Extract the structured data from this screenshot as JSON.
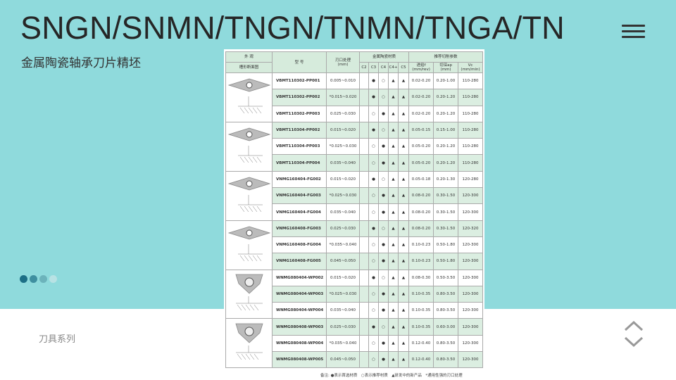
{
  "header": {
    "title": "SNGN/SNMN/TNGN/TNMN/TNGA/TN",
    "subtitle": "金属陶瓷轴承刀片精坯",
    "menu_icon": "hamburger-icon"
  },
  "footer": {
    "series_label": "刀具系列",
    "up_icon": "chevron-up-icon",
    "down_icon": "chevron-down-icon"
  },
  "pager": {
    "dots": 4,
    "colors": [
      "#1d6f86",
      "#3f8fa0",
      "#6cb3bb",
      "#b8e2e4"
    ]
  },
  "colors": {
    "background": "#8fdadc",
    "row_green": "#dbeee1",
    "header_green": "#d6ebdc"
  },
  "table": {
    "headers": {
      "appearance": "外 观",
      "section": "槽形断面图",
      "model": "型 号",
      "edge": "刃口处理",
      "edge_unit": "(mm)",
      "material": "金属陶瓷材质",
      "grades": [
        "C2",
        "C3",
        "C4",
        "C4+",
        "C5"
      ],
      "params": "推荐切削参数",
      "feed": "进给f",
      "feed_unit": "(mm/rev)",
      "ap": "切深ap",
      "ap_unit": "(mm)",
      "vc": "Vc",
      "vc_unit": "(mm/min)"
    },
    "groups": [
      {
        "shape": "rhombic-35",
        "rows": [
          {
            "model": "VBMT110302-PP001",
            "edge": "0.005~0.010",
            "marks": [
              "",
              "●",
              "○",
              "▲",
              "▲"
            ],
            "f": "0.02-0.20",
            "ap": "0.20-1.00",
            "vc": "110-280"
          },
          {
            "model": "VBMT110302-PP002",
            "edge": "*0.015~0.020",
            "marks": [
              "",
              "●",
              "○",
              "▲",
              "▲"
            ],
            "f": "0.02-0.20",
            "ap": "0.20-1.20",
            "vc": "110-280"
          },
          {
            "model": "VBMT110302-PP003",
            "edge": "0.025~0.030",
            "marks": [
              "",
              "○",
              "●",
              "▲",
              "▲"
            ],
            "f": "0.02-0.20",
            "ap": "0.20-1.20",
            "vc": "110-280"
          }
        ]
      },
      {
        "shape": "rhombic-35",
        "rows": [
          {
            "model": "VBMT110304-PP002",
            "edge": "0.015~0.020",
            "marks": [
              "",
              "●",
              "○",
              "▲",
              "▲"
            ],
            "f": "0.05-0.15",
            "ap": "0.15-1.00",
            "vc": "110-280"
          },
          {
            "model": "VBMT110304-PP003",
            "edge": "*0.025~0.030",
            "marks": [
              "",
              "○",
              "●",
              "▲",
              "▲"
            ],
            "f": "0.05-0.20",
            "ap": "0.20-1.20",
            "vc": "110-280"
          },
          {
            "model": "VBMT110304-PP004",
            "edge": "0.035~0.040",
            "marks": [
              "",
              "○",
              "●",
              "▲",
              "▲"
            ],
            "f": "0.05-0.20",
            "ap": "0.20-1.20",
            "vc": "110-280"
          }
        ]
      },
      {
        "shape": "rhombic-35",
        "rows": [
          {
            "model": "VNMG160404-FG002",
            "edge": "0.015~0.020",
            "marks": [
              "",
              "●",
              "○",
              "▲",
              "▲"
            ],
            "f": "0.05-0.18",
            "ap": "0.20-1.30",
            "vc": "120-280"
          },
          {
            "model": "VNMG160404-FG003",
            "edge": "*0.025~0.030",
            "marks": [
              "",
              "○",
              "●",
              "▲",
              "▲"
            ],
            "f": "0.08-0.20",
            "ap": "0.30-1.50",
            "vc": "120-300"
          },
          {
            "model": "VNMG160404-FG004",
            "edge": "0.035~0.040",
            "marks": [
              "",
              "○",
              "●",
              "▲",
              "▲"
            ],
            "f": "0.08-0.20",
            "ap": "0.30-1.50",
            "vc": "120-300"
          }
        ]
      },
      {
        "shape": "rhombic-35",
        "rows": [
          {
            "model": "VNMG160408-FG003",
            "edge": "0.025~0.030",
            "marks": [
              "",
              "●",
              "○",
              "▲",
              "▲"
            ],
            "f": "0.08-0.20",
            "ap": "0.30-1.50",
            "vc": "120-320"
          },
          {
            "model": "VNMG160408-FG004",
            "edge": "*0.035~0.040",
            "marks": [
              "",
              "○",
              "●",
              "▲",
              "▲"
            ],
            "f": "0.10-0.23",
            "ap": "0.50-1.80",
            "vc": "120-300"
          },
          {
            "model": "VNMG160408-FG005",
            "edge": "0.045~0.050",
            "marks": [
              "",
              "○",
              "●",
              "▲",
              "▲"
            ],
            "f": "0.10-0.23",
            "ap": "0.50-1.80",
            "vc": "120-300"
          }
        ]
      },
      {
        "shape": "trigon",
        "rows": [
          {
            "model": "WNMG080404-WP002",
            "edge": "0.015~0.020",
            "marks": [
              "",
              "●",
              "○",
              "▲",
              "▲"
            ],
            "f": "0.08-0.30",
            "ap": "0.50-3.50",
            "vc": "120-300"
          },
          {
            "model": "WNMG080404-WP003",
            "edge": "*0.025~0.030",
            "marks": [
              "",
              "○",
              "●",
              "▲",
              "▲"
            ],
            "f": "0.10-0.35",
            "ap": "0.80-3.50",
            "vc": "120-300"
          },
          {
            "model": "WNMG080404-WP004",
            "edge": "0.035~0.040",
            "marks": [
              "",
              "○",
              "●",
              "▲",
              "▲"
            ],
            "f": "0.10-0.35",
            "ap": "0.80-3.50",
            "vc": "120-300"
          }
        ]
      },
      {
        "shape": "trigon",
        "rows": [
          {
            "model": "WNMG080408-WP003",
            "edge": "0.025~0.030",
            "marks": [
              "",
              "●",
              "○",
              "▲",
              "▲"
            ],
            "f": "0.10-0.35",
            "ap": "0.60-3.00",
            "vc": "120-300"
          },
          {
            "model": "WNMG080408-WP004",
            "edge": "*0.035~0.040",
            "marks": [
              "",
              "○",
              "●",
              "▲",
              "▲"
            ],
            "f": "0.12-0.40",
            "ap": "0.80-3.50",
            "vc": "120-300"
          },
          {
            "model": "WNMG080408-WP005",
            "edge": "0.045~0.050",
            "marks": [
              "",
              "○",
              "●",
              "▲",
              "▲"
            ],
            "f": "0.12-0.40",
            "ap": "0.80-3.50",
            "vc": "120-300"
          }
        ]
      }
    ],
    "note": "备注: ●表示首选材质　○表示推荐材质　▲研发中的新产品　*通用性强的刃口处理"
  }
}
